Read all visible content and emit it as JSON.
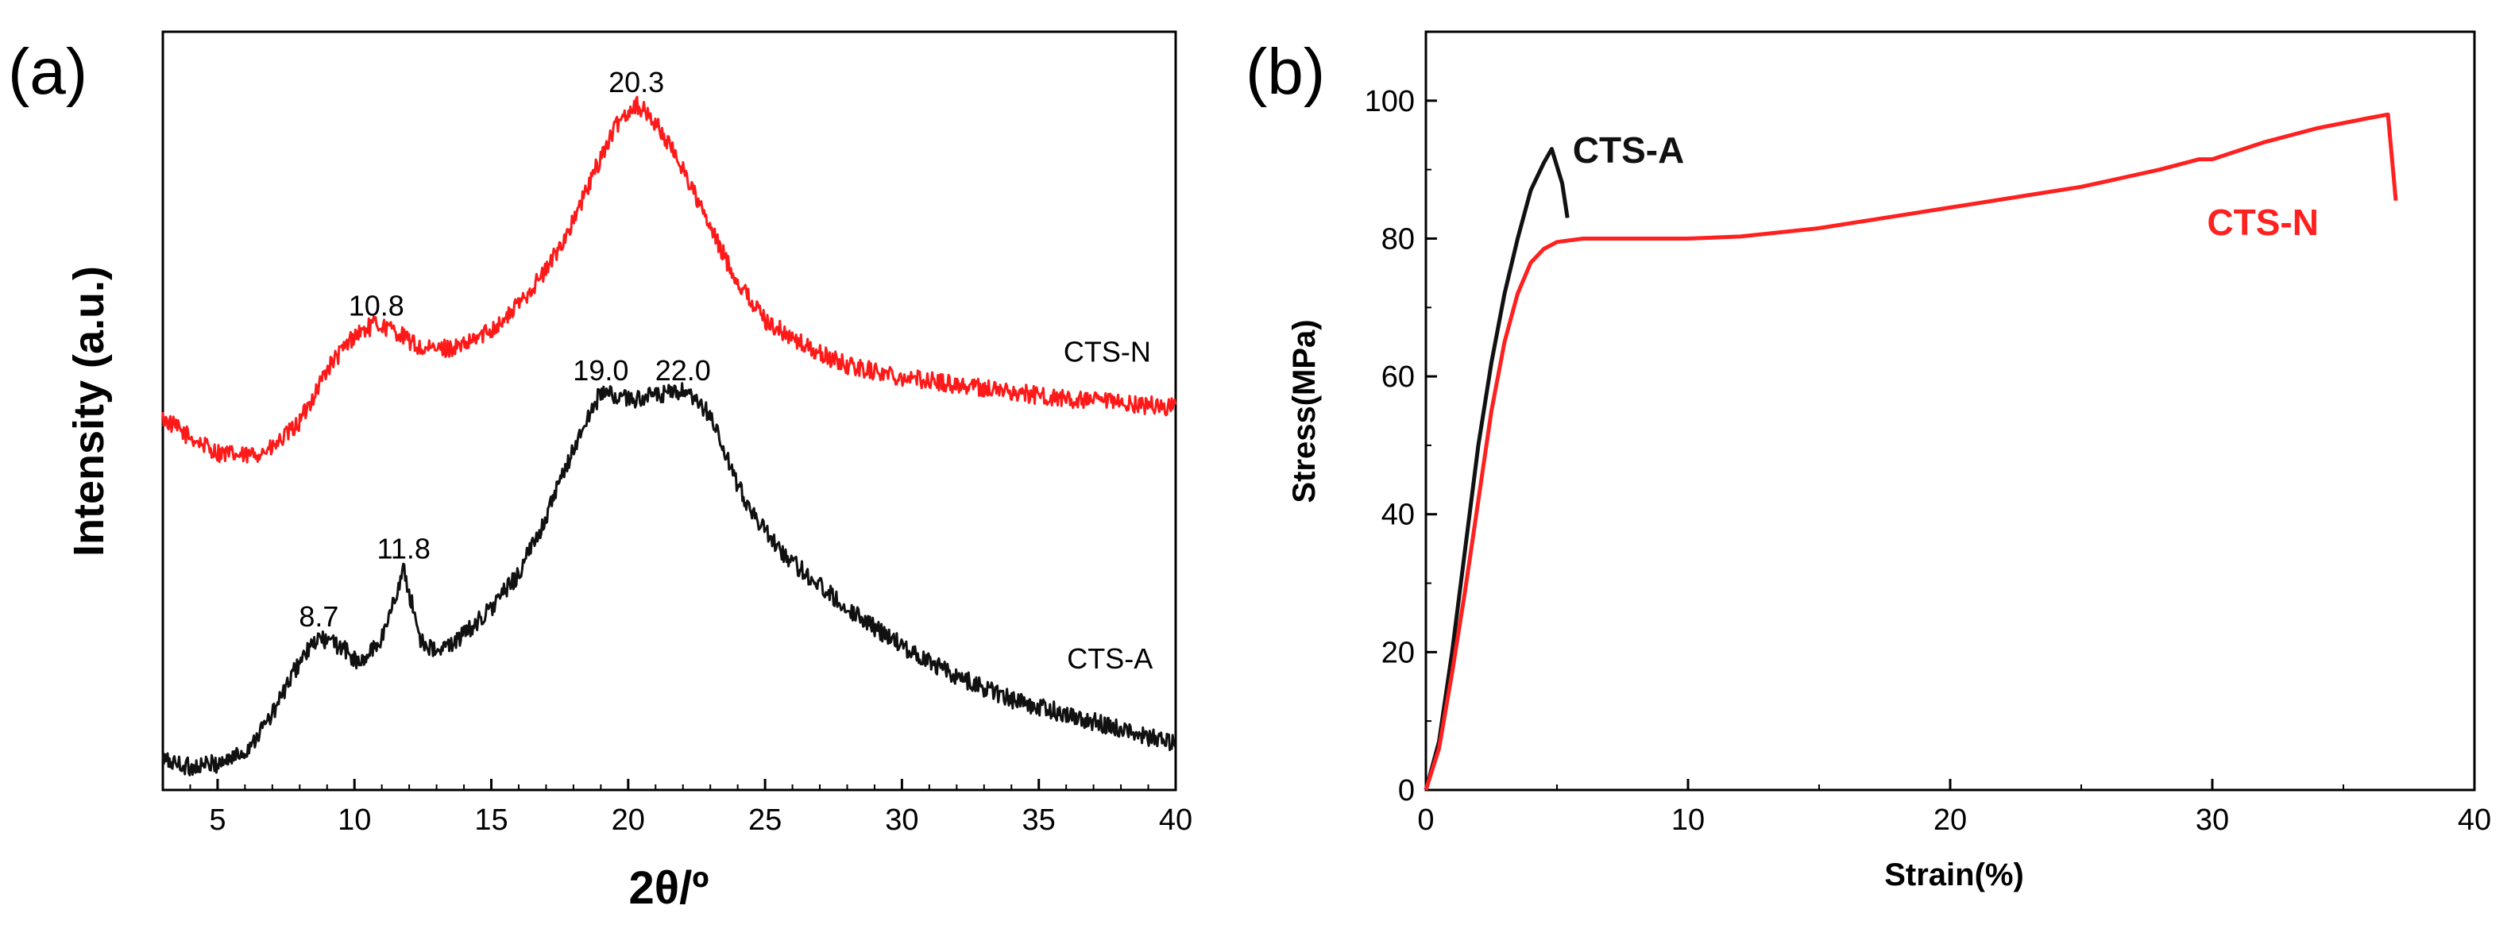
{
  "chart_data": [
    {
      "panel_label": "(a)",
      "type": "line",
      "xlabel": "2θ/º",
      "ylabel": "Intensity (a.u.)",
      "xlim": [
        3,
        40
      ],
      "ylim": [
        0,
        100
      ],
      "xticks": [
        5,
        10,
        15,
        20,
        25,
        30,
        35,
        40
      ],
      "y_ticks_shown": false,
      "series": [
        {
          "name": "CTS-N",
          "color": "#ff1a1a",
          "noise": 1.2,
          "x": [
            3,
            4,
            5,
            6,
            7,
            8,
            9,
            10,
            10.8,
            11.5,
            12.5,
            14,
            15.5,
            17,
            18,
            19,
            19.7,
            20.3,
            21,
            22,
            23,
            24,
            25,
            26,
            27,
            28,
            30,
            32,
            34,
            36,
            38,
            40
          ],
          "y": [
            49,
            46.5,
            44.5,
            44,
            45,
            48.5,
            55.5,
            60,
            61.5,
            60.5,
            58,
            58.5,
            62,
            68.5,
            75,
            83.5,
            88.5,
            90.5,
            88,
            82,
            74,
            67,
            62,
            59.5,
            57.5,
            56,
            54.5,
            53.5,
            52.5,
            51.5,
            51,
            50.5
          ]
        },
        {
          "name": "CTS-A",
          "color": "#111111",
          "noise": 1.2,
          "x": [
            3,
            4,
            5,
            6,
            7,
            8,
            8.7,
            9.5,
            10.2,
            11,
            11.8,
            12.4,
            13,
            14,
            15,
            16,
            17,
            18,
            19,
            20,
            21,
            22,
            23,
            24,
            25,
            26,
            27,
            28,
            30,
            32,
            34,
            36,
            38,
            40
          ],
          "y": [
            4,
            3,
            3.5,
            5,
            10,
            17,
            20,
            19,
            16.5,
            20,
            29,
            20,
            18,
            20.5,
            24,
            28.5,
            36,
            45,
            52.5,
            51.5,
            52,
            52.5,
            49.5,
            40,
            34,
            30,
            27,
            24,
            19,
            15,
            12,
            10,
            8,
            6
          ]
        }
      ],
      "peak_labels": [
        {
          "text": "20.3",
          "x": 20.3,
          "y": 91
        },
        {
          "text": "10.8",
          "x": 10.8,
          "y": 61.5
        },
        {
          "text": "19.0",
          "x": 19.0,
          "y": 53
        },
        {
          "text": "22.0",
          "x": 22.0,
          "y": 53
        },
        {
          "text": "11.8",
          "x": 11.8,
          "y": 29.5
        },
        {
          "text": "8.7",
          "x": 8.7,
          "y": 20.5
        }
      ],
      "curve_labels": [
        {
          "text": "CTS-N",
          "x": 37.5,
          "y": 56.5
        },
        {
          "text": "CTS-A",
          "x": 37.6,
          "y": 16
        }
      ]
    },
    {
      "panel_label": "(b)",
      "type": "line",
      "xlabel": "Strain(%)",
      "ylabel": "Stress(MPa)",
      "xlim": [
        0,
        40
      ],
      "ylim": [
        0,
        110
      ],
      "xticks": [
        0,
        10,
        20,
        30,
        40
      ],
      "yticks": [
        0,
        20,
        40,
        60,
        80,
        100
      ],
      "series": [
        {
          "name": "CTS-A",
          "color": "#111111",
          "noise": 0,
          "x": [
            0,
            0.5,
            1,
            1.5,
            2,
            2.5,
            3,
            3.5,
            4,
            4.5,
            4.8,
            5.2,
            5.4
          ],
          "y": [
            0,
            7,
            20,
            35,
            50,
            62,
            72,
            80,
            87,
            91,
            93,
            88,
            83
          ]
        },
        {
          "name": "CTS-N",
          "color": "#ff2020",
          "noise": 0,
          "x": [
            0,
            0.5,
            1,
            1.5,
            2,
            2.5,
            3,
            3.5,
            4,
            4.5,
            5,
            6,
            8,
            10,
            12,
            15,
            20,
            25,
            28,
            29.5,
            30,
            32,
            34,
            36,
            36.7,
            37.0
          ],
          "y": [
            0,
            6,
            17,
            29,
            42,
            55,
            65,
            72,
            76.5,
            78.5,
            79.5,
            80,
            80,
            80,
            80.3,
            81.5,
            84.5,
            87.5,
            90,
            91.5,
            91.5,
            94,
            96,
            97.5,
            98,
            85.5
          ]
        }
      ],
      "curve_labels": [
        {
          "text": "CTS-A",
          "x": 5.6,
          "y": 91,
          "color": "#111111"
        },
        {
          "text": "CTS-N",
          "x": 29.8,
          "y": 80.5,
          "color": "#ff2020"
        }
      ]
    }
  ]
}
